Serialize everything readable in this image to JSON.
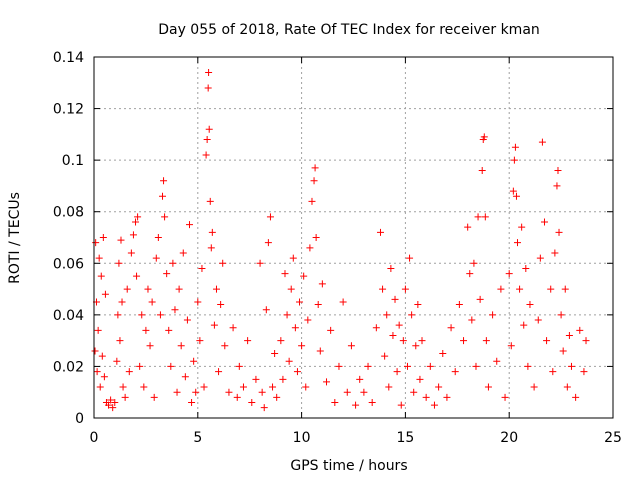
{
  "chart_data": {
    "type": "scatter",
    "title": "Day 055 of 2018, Rate Of TEC Index for receiver kman",
    "xlabel": "GPS time / hours",
    "ylabel": "ROTI / TECUs",
    "xlim": [
      0,
      25
    ],
    "ylim": [
      0,
      0.14
    ],
    "x_ticks": [
      0,
      5,
      10,
      15,
      20,
      25
    ],
    "y_ticks": [
      0,
      0.02,
      0.04,
      0.06,
      0.08,
      0.1,
      0.12,
      0.14
    ],
    "x_tick_labels": [
      "0",
      "5",
      "10",
      "15",
      "20",
      "25"
    ],
    "y_tick_labels": [
      "0",
      "0.02",
      "0.04",
      "0.06",
      "0.08",
      "0.1",
      "0.12",
      "0.14"
    ],
    "grid": true,
    "marker": "plus",
    "marker_color": "#ff0000",
    "series": [
      {
        "name": "ROTI",
        "points": [
          [
            0.05,
            0.026
          ],
          [
            0.08,
            0.068
          ],
          [
            0.12,
            0.045
          ],
          [
            0.15,
            0.018
          ],
          [
            0.2,
            0.034
          ],
          [
            0.25,
            0.062
          ],
          [
            0.3,
            0.012
          ],
          [
            0.35,
            0.055
          ],
          [
            0.4,
            0.024
          ],
          [
            0.45,
            0.07
          ],
          [
            0.5,
            0.016
          ],
          [
            0.55,
            0.048
          ],
          [
            0.6,
            0.006
          ],
          [
            0.7,
            0.005
          ],
          [
            0.8,
            0.007
          ],
          [
            0.9,
            0.004
          ],
          [
            1.0,
            0.006
          ],
          [
            1.1,
            0.022
          ],
          [
            1.15,
            0.04
          ],
          [
            1.2,
            0.06
          ],
          [
            1.25,
            0.03
          ],
          [
            1.3,
            0.069
          ],
          [
            1.35,
            0.045
          ],
          [
            1.4,
            0.012
          ],
          [
            1.5,
            0.008
          ],
          [
            1.6,
            0.05
          ],
          [
            1.7,
            0.018
          ],
          [
            1.8,
            0.064
          ],
          [
            1.9,
            0.071
          ],
          [
            2.0,
            0.076
          ],
          [
            2.05,
            0.055
          ],
          [
            2.1,
            0.078
          ],
          [
            2.2,
            0.02
          ],
          [
            2.3,
            0.04
          ],
          [
            2.4,
            0.012
          ],
          [
            2.5,
            0.034
          ],
          [
            2.6,
            0.05
          ],
          [
            2.7,
            0.028
          ],
          [
            2.8,
            0.045
          ],
          [
            2.9,
            0.008
          ],
          [
            3.0,
            0.062
          ],
          [
            3.1,
            0.07
          ],
          [
            3.2,
            0.04
          ],
          [
            3.3,
            0.086
          ],
          [
            3.35,
            0.092
          ],
          [
            3.4,
            0.078
          ],
          [
            3.5,
            0.056
          ],
          [
            3.6,
            0.034
          ],
          [
            3.7,
            0.02
          ],
          [
            3.8,
            0.06
          ],
          [
            3.9,
            0.042
          ],
          [
            4.0,
            0.01
          ],
          [
            4.1,
            0.05
          ],
          [
            4.2,
            0.028
          ],
          [
            4.3,
            0.064
          ],
          [
            4.4,
            0.016
          ],
          [
            4.5,
            0.038
          ],
          [
            4.6,
            0.075
          ],
          [
            4.7,
            0.006
          ],
          [
            4.8,
            0.022
          ],
          [
            4.9,
            0.01
          ],
          [
            5.0,
            0.045
          ],
          [
            5.1,
            0.03
          ],
          [
            5.2,
            0.058
          ],
          [
            5.3,
            0.012
          ],
          [
            5.4,
            0.102
          ],
          [
            5.45,
            0.108
          ],
          [
            5.5,
            0.128
          ],
          [
            5.52,
            0.134
          ],
          [
            5.55,
            0.112
          ],
          [
            5.6,
            0.084
          ],
          [
            5.65,
            0.066
          ],
          [
            5.7,
            0.072
          ],
          [
            5.8,
            0.036
          ],
          [
            5.9,
            0.05
          ],
          [
            6.0,
            0.018
          ],
          [
            6.1,
            0.044
          ],
          [
            6.2,
            0.06
          ],
          [
            6.3,
            0.028
          ],
          [
            6.5,
            0.01
          ],
          [
            6.7,
            0.035
          ],
          [
            6.9,
            0.008
          ],
          [
            7.0,
            0.02
          ],
          [
            7.2,
            0.012
          ],
          [
            7.4,
            0.03
          ],
          [
            7.6,
            0.006
          ],
          [
            7.8,
            0.015
          ],
          [
            8.0,
            0.06
          ],
          [
            8.1,
            0.01
          ],
          [
            8.2,
            0.004
          ],
          [
            8.3,
            0.042
          ],
          [
            8.4,
            0.068
          ],
          [
            8.5,
            0.078
          ],
          [
            8.6,
            0.012
          ],
          [
            8.7,
            0.025
          ],
          [
            8.8,
            0.008
          ],
          [
            9.0,
            0.03
          ],
          [
            9.1,
            0.015
          ],
          [
            9.2,
            0.056
          ],
          [
            9.3,
            0.04
          ],
          [
            9.4,
            0.022
          ],
          [
            9.5,
            0.05
          ],
          [
            9.6,
            0.062
          ],
          [
            9.7,
            0.035
          ],
          [
            9.8,
            0.018
          ],
          [
            9.9,
            0.045
          ],
          [
            10.0,
            0.028
          ],
          [
            10.1,
            0.055
          ],
          [
            10.2,
            0.012
          ],
          [
            10.3,
            0.038
          ],
          [
            10.4,
            0.066
          ],
          [
            10.5,
            0.084
          ],
          [
            10.6,
            0.092
          ],
          [
            10.65,
            0.097
          ],
          [
            10.7,
            0.07
          ],
          [
            10.8,
            0.044
          ],
          [
            10.9,
            0.026
          ],
          [
            11.0,
            0.052
          ],
          [
            11.2,
            0.014
          ],
          [
            11.4,
            0.034
          ],
          [
            11.6,
            0.006
          ],
          [
            11.8,
            0.02
          ],
          [
            12.0,
            0.045
          ],
          [
            12.2,
            0.01
          ],
          [
            12.4,
            0.028
          ],
          [
            12.6,
            0.005
          ],
          [
            12.8,
            0.015
          ],
          [
            13.0,
            0.01
          ],
          [
            13.2,
            0.02
          ],
          [
            13.4,
            0.006
          ],
          [
            13.6,
            0.035
          ],
          [
            13.8,
            0.072
          ],
          [
            13.9,
            0.05
          ],
          [
            14.0,
            0.024
          ],
          [
            14.1,
            0.04
          ],
          [
            14.2,
            0.012
          ],
          [
            14.3,
            0.058
          ],
          [
            14.4,
            0.032
          ],
          [
            14.5,
            0.046
          ],
          [
            14.6,
            0.018
          ],
          [
            14.7,
            0.036
          ],
          [
            14.8,
            0.005
          ],
          [
            14.9,
            0.03
          ],
          [
            15.0,
            0.05
          ],
          [
            15.1,
            0.02
          ],
          [
            15.2,
            0.062
          ],
          [
            15.3,
            0.04
          ],
          [
            15.4,
            0.01
          ],
          [
            15.5,
            0.028
          ],
          [
            15.6,
            0.044
          ],
          [
            15.7,
            0.015
          ],
          [
            15.8,
            0.03
          ],
          [
            16.0,
            0.008
          ],
          [
            16.2,
            0.02
          ],
          [
            16.4,
            0.005
          ],
          [
            16.6,
            0.012
          ],
          [
            16.8,
            0.025
          ],
          [
            17.0,
            0.008
          ],
          [
            17.2,
            0.035
          ],
          [
            17.4,
            0.018
          ],
          [
            17.6,
            0.044
          ],
          [
            17.8,
            0.03
          ],
          [
            18.0,
            0.074
          ],
          [
            18.1,
            0.056
          ],
          [
            18.2,
            0.038
          ],
          [
            18.3,
            0.06
          ],
          [
            18.4,
            0.02
          ],
          [
            18.5,
            0.078
          ],
          [
            18.6,
            0.046
          ],
          [
            18.7,
            0.096
          ],
          [
            18.75,
            0.108
          ],
          [
            18.8,
            0.109
          ],
          [
            18.85,
            0.078
          ],
          [
            18.9,
            0.03
          ],
          [
            19.0,
            0.012
          ],
          [
            19.2,
            0.04
          ],
          [
            19.4,
            0.022
          ],
          [
            19.6,
            0.05
          ],
          [
            19.8,
            0.008
          ],
          [
            20.0,
            0.056
          ],
          [
            20.1,
            0.028
          ],
          [
            20.2,
            0.088
          ],
          [
            20.25,
            0.1
          ],
          [
            20.3,
            0.105
          ],
          [
            20.35,
            0.086
          ],
          [
            20.4,
            0.068
          ],
          [
            20.5,
            0.05
          ],
          [
            20.6,
            0.074
          ],
          [
            20.7,
            0.036
          ],
          [
            20.8,
            0.058
          ],
          [
            20.9,
            0.02
          ],
          [
            21.0,
            0.044
          ],
          [
            21.2,
            0.012
          ],
          [
            21.4,
            0.038
          ],
          [
            21.5,
            0.062
          ],
          [
            21.6,
            0.107
          ],
          [
            21.7,
            0.076
          ],
          [
            21.8,
            0.03
          ],
          [
            22.0,
            0.05
          ],
          [
            22.1,
            0.018
          ],
          [
            22.2,
            0.064
          ],
          [
            22.3,
            0.09
          ],
          [
            22.35,
            0.096
          ],
          [
            22.4,
            0.072
          ],
          [
            22.5,
            0.04
          ],
          [
            22.6,
            0.026
          ],
          [
            22.7,
            0.05
          ],
          [
            22.8,
            0.012
          ],
          [
            22.9,
            0.032
          ],
          [
            23.0,
            0.02
          ],
          [
            23.2,
            0.008
          ],
          [
            23.4,
            0.034
          ],
          [
            23.6,
            0.018
          ],
          [
            23.7,
            0.03
          ]
        ]
      }
    ]
  }
}
